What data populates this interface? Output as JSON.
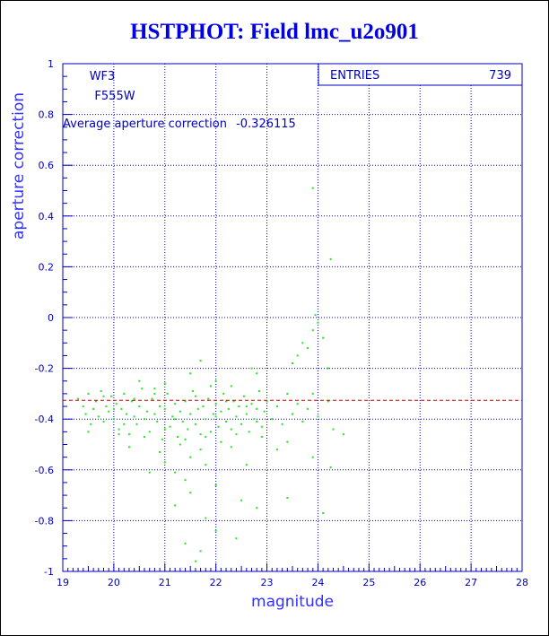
{
  "chart_data": {
    "type": "scatter",
    "title": "HSTPHOT: Field lmc_u2o901",
    "xlabel": "magnitude",
    "ylabel": "aperture correction",
    "xlim": [
      19,
      28
    ],
    "ylim": [
      -1,
      1
    ],
    "x_ticks": [
      "19",
      "20",
      "21",
      "22",
      "23",
      "24",
      "25",
      "26",
      "27",
      "28"
    ],
    "y_ticks": [
      "-1",
      "-0.8",
      "-0.6",
      "-0.4",
      "-0.2",
      "0",
      "0.2",
      "0.4",
      "0.6",
      "0.8",
      "1"
    ],
    "grid": true,
    "annotations": {
      "chip": "WF3",
      "filter": "F555W",
      "average_label": "Average aperture correction",
      "average_value": "-0.326115"
    },
    "stats_box": {
      "label": "ENTRIES",
      "value": "739"
    },
    "average_line": -0.326115,
    "point_color": "#22e622",
    "line_color": "#cc0000",
    "axis_color": "#0000c0",
    "points": [
      [
        19.3,
        -0.32
      ],
      [
        19.4,
        -0.35
      ],
      [
        19.45,
        -0.38
      ],
      [
        19.5,
        -0.3
      ],
      [
        19.55,
        -0.42
      ],
      [
        19.6,
        -0.36
      ],
      [
        19.65,
        -0.33
      ],
      [
        19.7,
        -0.39
      ],
      [
        19.75,
        -0.29
      ],
      [
        19.8,
        -0.41
      ],
      [
        19.85,
        -0.35
      ],
      [
        19.9,
        -0.37
      ],
      [
        19.95,
        -0.31
      ],
      [
        20.0,
        -0.4
      ],
      [
        20.05,
        -0.34
      ],
      [
        20.1,
        -0.44
      ],
      [
        20.15,
        -0.36
      ],
      [
        20.2,
        -0.3
      ],
      [
        20.25,
        -0.38
      ],
      [
        20.3,
        -0.46
      ],
      [
        20.35,
        -0.33
      ],
      [
        20.4,
        -0.39
      ],
      [
        20.45,
        -0.42
      ],
      [
        20.5,
        -0.35
      ],
      [
        20.55,
        -0.28
      ],
      [
        20.6,
        -0.4
      ],
      [
        20.65,
        -0.37
      ],
      [
        20.7,
        -0.45
      ],
      [
        20.75,
        -0.32
      ],
      [
        20.8,
        -0.38
      ],
      [
        20.85,
        -0.41
      ],
      [
        20.9,
        -0.35
      ],
      [
        20.95,
        -0.48
      ],
      [
        21.0,
        -0.36
      ],
      [
        21.05,
        -0.3
      ],
      [
        21.1,
        -0.43
      ],
      [
        21.15,
        -0.39
      ],
      [
        21.2,
        -0.34
      ],
      [
        21.25,
        -0.47
      ],
      [
        21.3,
        -0.37
      ],
      [
        21.35,
        -0.41
      ],
      [
        21.4,
        -0.33
      ],
      [
        21.45,
        -0.44
      ],
      [
        21.5,
        -0.38
      ],
      [
        21.55,
        -0.29
      ],
      [
        21.6,
        -0.42
      ],
      [
        21.65,
        -0.36
      ],
      [
        21.7,
        -0.46
      ],
      [
        21.75,
        -0.35
      ],
      [
        21.8,
        -0.4
      ],
      [
        21.85,
        -0.32
      ],
      [
        21.9,
        -0.45
      ],
      [
        21.95,
        -0.38
      ],
      [
        22.0,
        -0.34
      ],
      [
        22.05,
        -0.43
      ],
      [
        22.1,
        -0.37
      ],
      [
        22.15,
        -0.3
      ],
      [
        22.2,
        -0.41
      ],
      [
        22.25,
        -0.36
      ],
      [
        22.3,
        -0.44
      ],
      [
        22.35,
        -0.33
      ],
      [
        22.4,
        -0.39
      ],
      [
        22.45,
        -0.35
      ],
      [
        22.5,
        -0.42
      ],
      [
        22.55,
        -0.31
      ],
      [
        22.6,
        -0.38
      ],
      [
        22.65,
        -0.45
      ],
      [
        22.7,
        -0.34
      ],
      [
        22.75,
        -0.4
      ],
      [
        22.8,
        -0.36
      ],
      [
        22.85,
        -0.29
      ],
      [
        22.9,
        -0.43
      ],
      [
        22.95,
        -0.37
      ],
      [
        23.0,
        -0.33
      ],
      [
        23.1,
        -0.4
      ],
      [
        23.2,
        -0.35
      ],
      [
        23.3,
        -0.42
      ],
      [
        23.4,
        -0.3
      ],
      [
        23.5,
        -0.38
      ],
      [
        23.6,
        -0.34
      ],
      [
        23.7,
        -0.41
      ],
      [
        23.8,
        -0.36
      ],
      [
        23.9,
        -0.3
      ],
      [
        24.0,
        -0.39
      ],
      [
        24.2,
        -0.33
      ],
      [
        19.5,
        -0.45
      ],
      [
        19.8,
        -0.31
      ],
      [
        20.0,
        -0.36
      ],
      [
        20.2,
        -0.42
      ],
      [
        20.4,
        -0.32
      ],
      [
        20.6,
        -0.47
      ],
      [
        20.8,
        -0.3
      ],
      [
        21.0,
        -0.44
      ],
      [
        21.2,
        -0.4
      ],
      [
        21.4,
        -0.48
      ],
      [
        21.6,
        -0.31
      ],
      [
        21.8,
        -0.47
      ],
      [
        22.0,
        -0.39
      ],
      [
        22.2,
        -0.33
      ],
      [
        22.4,
        -0.46
      ],
      [
        22.6,
        -0.35
      ],
      [
        22.8,
        -0.41
      ],
      [
        21.3,
        -0.5
      ],
      [
        21.7,
        -0.52
      ],
      [
        22.1,
        -0.49
      ],
      [
        20.9,
        -0.53
      ],
      [
        21.5,
        -0.55
      ],
      [
        22.3,
        -0.51
      ],
      [
        20.3,
        -0.51
      ],
      [
        22.9,
        -0.47
      ],
      [
        21.5,
        -0.22
      ],
      [
        21.7,
        -0.17
      ],
      [
        22.0,
        -0.25
      ],
      [
        22.3,
        -0.27
      ],
      [
        20.5,
        -0.25
      ],
      [
        21.0,
        -0.26
      ],
      [
        22.7,
        -0.2
      ],
      [
        22.8,
        -0.22
      ],
      [
        23.5,
        -0.18
      ],
      [
        23.6,
        -0.15
      ],
      [
        23.7,
        -0.1
      ],
      [
        23.8,
        -0.12
      ],
      [
        23.9,
        -0.05
      ],
      [
        24.0,
        -0.02
      ],
      [
        24.1,
        -0.08
      ],
      [
        24.2,
        -0.2
      ],
      [
        23.95,
        0.01
      ],
      [
        23.9,
        0.51
      ],
      [
        24.25,
        0.23
      ],
      [
        21.0,
        -0.57
      ],
      [
        21.2,
        -0.61
      ],
      [
        21.4,
        -0.64
      ],
      [
        21.8,
        -0.58
      ],
      [
        22.0,
        -0.66
      ],
      [
        21.5,
        -0.69
      ],
      [
        22.5,
        -0.72
      ],
      [
        22.8,
        -0.75
      ],
      [
        23.4,
        -0.71
      ],
      [
        24.25,
        -0.59
      ],
      [
        23.9,
        -0.55
      ],
      [
        21.2,
        -0.74
      ],
      [
        21.8,
        -0.79
      ],
      [
        22.0,
        -0.84
      ],
      [
        21.4,
        -0.89
      ],
      [
        21.7,
        -0.92
      ],
      [
        21.6,
        -0.96
      ],
      [
        22.4,
        -0.87
      ],
      [
        24.1,
        -0.77
      ],
      [
        24.5,
        -0.46
      ],
      [
        24.3,
        -0.44
      ],
      [
        23.2,
        -0.52
      ],
      [
        23.4,
        -0.49
      ],
      [
        22.6,
        -0.58
      ],
      [
        20.7,
        -0.61
      ],
      [
        20.1,
        -0.46
      ],
      [
        21.9,
        -0.27
      ],
      [
        20.8,
        -0.28
      ]
    ]
  }
}
